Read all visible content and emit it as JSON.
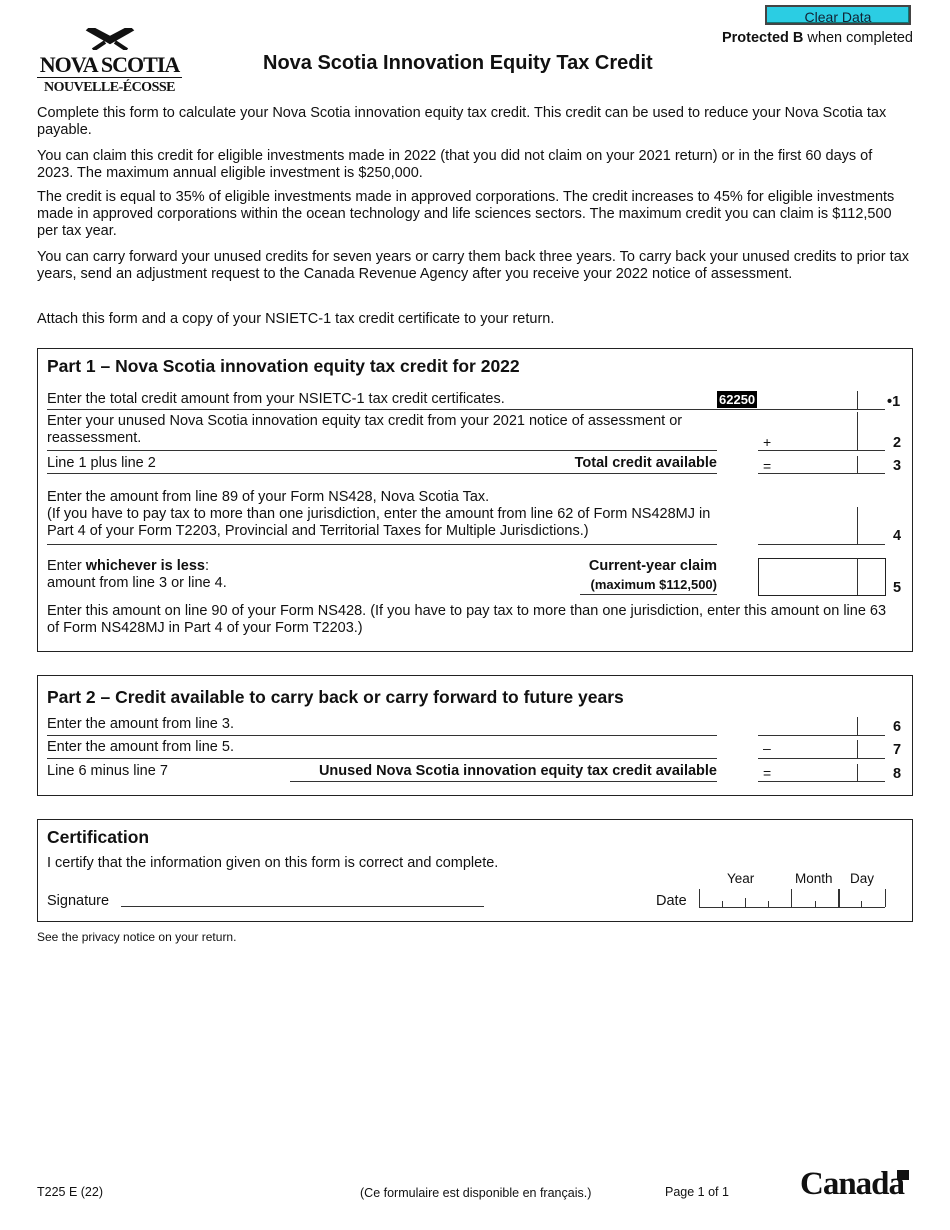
{
  "header": {
    "clear_button": "Clear Data",
    "protected_bold": "Protected B",
    "protected_rest": " when completed",
    "title": "Nova Scotia Innovation Equity Tax Credit",
    "logo_line1": "NOVA SCOTIA",
    "logo_line2": "NOUVELLE-ÉCOSSE"
  },
  "intro": [
    "Complete this form to calculate your Nova Scotia innovation equity tax credit. This credit can be used to reduce your Nova Scotia tax payable.",
    "You can claim this credit for eligible investments made in 2022 (that you did not claim on your 2021 return) or in the first 60 days of 2023. The maximum annual eligible investment is $250,000.",
    "The credit is equal to 35% of eligible investments made in approved corporations. The credit increases to 45% for eligible investments made in approved corporations within the ocean technology and life sciences sectors. The maximum credit you can claim is $112,500 per tax year.",
    "You can carry forward your unused credits for seven years or carry them back three years. To carry back your unused credits to prior tax years, send an adjustment request to the Canada Revenue Agency after you receive your 2022 notice of assessment.",
    "Attach this form and a copy of your NSIETC-1 tax credit certificate to your return."
  ],
  "part1": {
    "title": "Part 1 – Nova Scotia innovation equity tax credit for 2022",
    "line1": "Enter the total credit amount from your NSIETC-1 tax credit certificates.",
    "code1": "62250",
    "num1": "•1",
    "line2": "Enter your unused Nova Scotia innovation equity tax credit from your 2021 notice of assessment or reassessment.",
    "sym2": "+",
    "num2": "2",
    "line3": "Line 1 plus line 2",
    "line3_bold": "Total credit available",
    "sym3": "=",
    "num3": "3",
    "line4a": "Enter the amount from line 89 of your Form NS428, Nova Scotia Tax.",
    "line4b": "(If you have to pay tax to more than one jurisdiction, enter the amount from line 62 of Form NS428MJ in Part 4 of your Form T2203, Provincial and Territorial Taxes for Multiple Jurisdictions.)",
    "num4": "4",
    "line5_pre": "Enter ",
    "line5_bold": "whichever is less",
    "line5_post": ":",
    "line5b": "amount from line 3 or line 4.",
    "claim": "Current-year claim",
    "claim_max": "(maximum $112,500)",
    "num5": "5",
    "note": "Enter this amount on line 90 of your Form NS428. (If you have to pay tax to more than one jurisdiction, enter this amount on line 63 of Form NS428MJ in Part 4 of your Form T2203.)"
  },
  "part2": {
    "title": "Part 2 – Credit available to carry back or carry forward to future years",
    "line6": "Enter the amount from line 3.",
    "num6": "6",
    "line7": "Enter the amount from line 5.",
    "sym7": "–",
    "num7": "7",
    "line8": "Line 6 minus line 7",
    "line8_bold": "Unused Nova Scotia innovation equity tax credit available",
    "sym8": "=",
    "num8": "8"
  },
  "cert": {
    "title": "Certification",
    "text": "I certify that the information given on this form is correct and complete.",
    "signature": "Signature",
    "date": "Date",
    "year": "Year",
    "month": "Month",
    "day": "Day"
  },
  "privacy": "See the privacy notice on your return.",
  "footer": {
    "code": "T225 E (22)",
    "french": "(Ce formulaire est disponible en français.)",
    "page": "Page 1 of 1",
    "wordmark": "Canada"
  }
}
